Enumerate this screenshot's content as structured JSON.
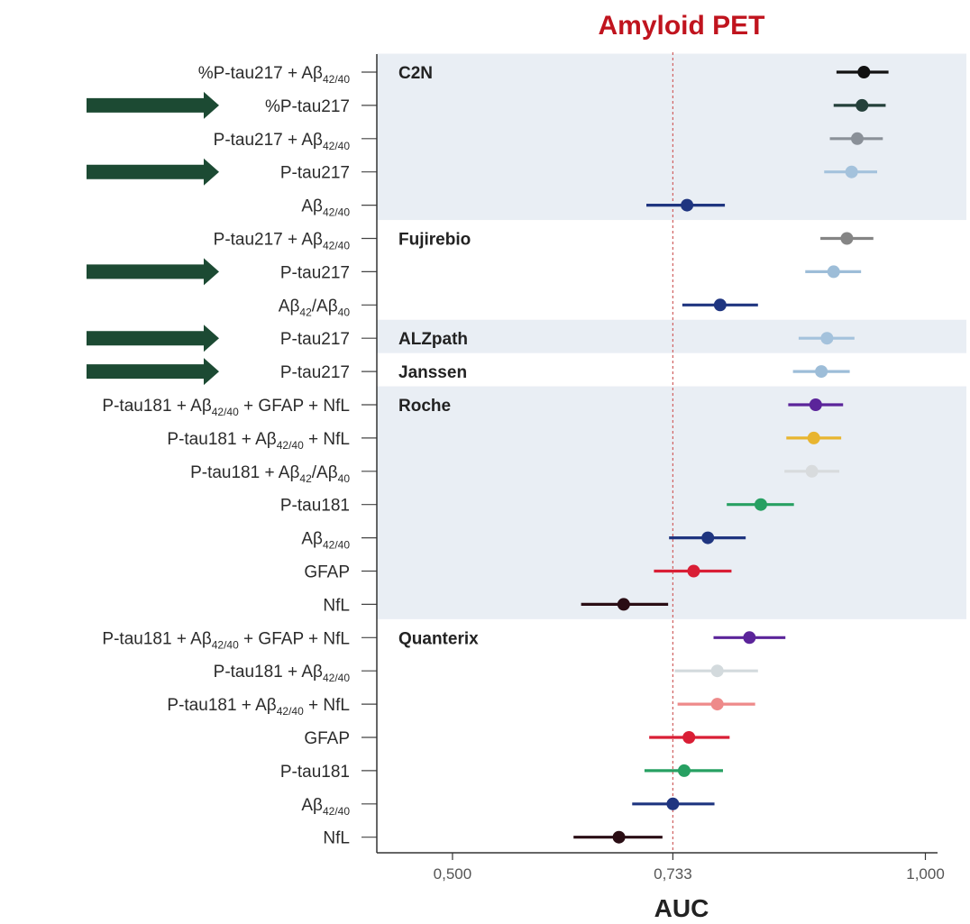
{
  "chart_data": {
    "type": "forest",
    "title": "Amyloid PET",
    "xlabel": "AUC",
    "xlim": [
      0.42,
      1.01
    ],
    "reference_line": 0.733,
    "x_ticks": [
      {
        "value": 0.5,
        "label": "0,500"
      },
      {
        "value": 0.733,
        "label": "0,733"
      },
      {
        "value": 1.0,
        "label": "1,000"
      }
    ],
    "groups": [
      {
        "name": "C2N",
        "first_row": 0,
        "last_row": 4,
        "shaded": true
      },
      {
        "name": "Fujirebio",
        "first_row": 5,
        "last_row": 7,
        "shaded": false
      },
      {
        "name": "ALZpath",
        "first_row": 8,
        "last_row": 8,
        "shaded": true
      },
      {
        "name": "Janssen",
        "first_row": 9,
        "last_row": 9,
        "shaded": false
      },
      {
        "name": "Roche",
        "first_row": 10,
        "last_row": 16,
        "shaded": true
      },
      {
        "name": "Quanterix",
        "first_row": 17,
        "last_row": 23,
        "shaded": false
      }
    ],
    "rows": [
      {
        "label": "%P-tau217 + Aβ42/40",
        "auc": 0.935,
        "lo": 0.906,
        "hi": 0.961,
        "color": "#111111",
        "arrow": false
      },
      {
        "label": "%P-tau217",
        "auc": 0.933,
        "lo": 0.903,
        "hi": 0.958,
        "color": "#24403a",
        "arrow": true
      },
      {
        "label": "P-tau217 + Aβ42/40",
        "auc": 0.928,
        "lo": 0.899,
        "hi": 0.955,
        "color": "#8a9098",
        "arrow": false
      },
      {
        "label": "P-tau217",
        "auc": 0.922,
        "lo": 0.893,
        "hi": 0.949,
        "color": "#a4c2dc",
        "arrow": true
      },
      {
        "label": "Aβ42/40",
        "auc": 0.748,
        "lo": 0.705,
        "hi": 0.788,
        "color": "#1f3580",
        "arrow": false
      },
      {
        "label": "P-tau217 + Aβ42/40",
        "auc": 0.917,
        "lo": 0.889,
        "hi": 0.945,
        "color": "#858585",
        "arrow": false
      },
      {
        "label": "P-tau217",
        "auc": 0.903,
        "lo": 0.873,
        "hi": 0.932,
        "color": "#9dbdd8",
        "arrow": true
      },
      {
        "label": "Aβ42/Aβ40",
        "auc": 0.783,
        "lo": 0.743,
        "hi": 0.823,
        "color": "#1f3580",
        "arrow": false
      },
      {
        "label": "P-tau217",
        "auc": 0.896,
        "lo": 0.866,
        "hi": 0.925,
        "color": "#a4c2dc",
        "arrow": true
      },
      {
        "label": "P-tau217",
        "auc": 0.89,
        "lo": 0.86,
        "hi": 0.92,
        "color": "#9dbdd8",
        "arrow": true
      },
      {
        "label": "P-tau181 + Aβ42/40 + GFAP + NfL",
        "auc": 0.884,
        "lo": 0.855,
        "hi": 0.913,
        "color": "#5b249a",
        "arrow": false
      },
      {
        "label": "P-tau181 + Aβ42/40 + NfL",
        "auc": 0.882,
        "lo": 0.853,
        "hi": 0.911,
        "color": "#e8b530",
        "arrow": false
      },
      {
        "label": "P-tau181 + Aβ42/Aβ40",
        "auc": 0.88,
        "lo": 0.851,
        "hi": 0.909,
        "color": "#d8dbdd",
        "arrow": false
      },
      {
        "label": "P-tau181",
        "auc": 0.826,
        "lo": 0.79,
        "hi": 0.861,
        "color": "#27a062",
        "arrow": false
      },
      {
        "label": "Aβ42/40",
        "auc": 0.77,
        "lo": 0.729,
        "hi": 0.81,
        "color": "#1f3580",
        "arrow": false
      },
      {
        "label": "GFAP",
        "auc": 0.755,
        "lo": 0.713,
        "hi": 0.795,
        "color": "#d91e35",
        "arrow": false
      },
      {
        "label": "NfL",
        "auc": 0.681,
        "lo": 0.636,
        "hi": 0.728,
        "color": "#2a0d14",
        "arrow": false
      },
      {
        "label": "P-tau181 + Aβ42/40 + GFAP + NfL",
        "auc": 0.814,
        "lo": 0.776,
        "hi": 0.852,
        "color": "#5b249a",
        "arrow": false
      },
      {
        "label": "P-tau181 + Aβ42/40",
        "auc": 0.78,
        "lo": 0.735,
        "hi": 0.823,
        "color": "#d3dadd",
        "arrow": false
      },
      {
        "label": "P-tau181 + Aβ42/40 + NfL",
        "auc": 0.78,
        "lo": 0.738,
        "hi": 0.82,
        "color": "#ee8a8a",
        "arrow": false
      },
      {
        "label": "GFAP",
        "auc": 0.75,
        "lo": 0.708,
        "hi": 0.793,
        "color": "#d91e35",
        "arrow": false
      },
      {
        "label": "P-tau181",
        "auc": 0.745,
        "lo": 0.703,
        "hi": 0.786,
        "color": "#27a062",
        "arrow": false
      },
      {
        "label": "Aβ42/40",
        "auc": 0.733,
        "lo": 0.69,
        "hi": 0.777,
        "color": "#1f3580",
        "arrow": false
      },
      {
        "label": "NfL",
        "auc": 0.676,
        "lo": 0.628,
        "hi": 0.722,
        "color": "#2a0d14",
        "arrow": false
      }
    ]
  },
  "style": {
    "title_color": "#c0141e",
    "shade_color": "#e9eef4",
    "arrow_color": "#1c4a33",
    "ref_line_color": "#d06060"
  }
}
